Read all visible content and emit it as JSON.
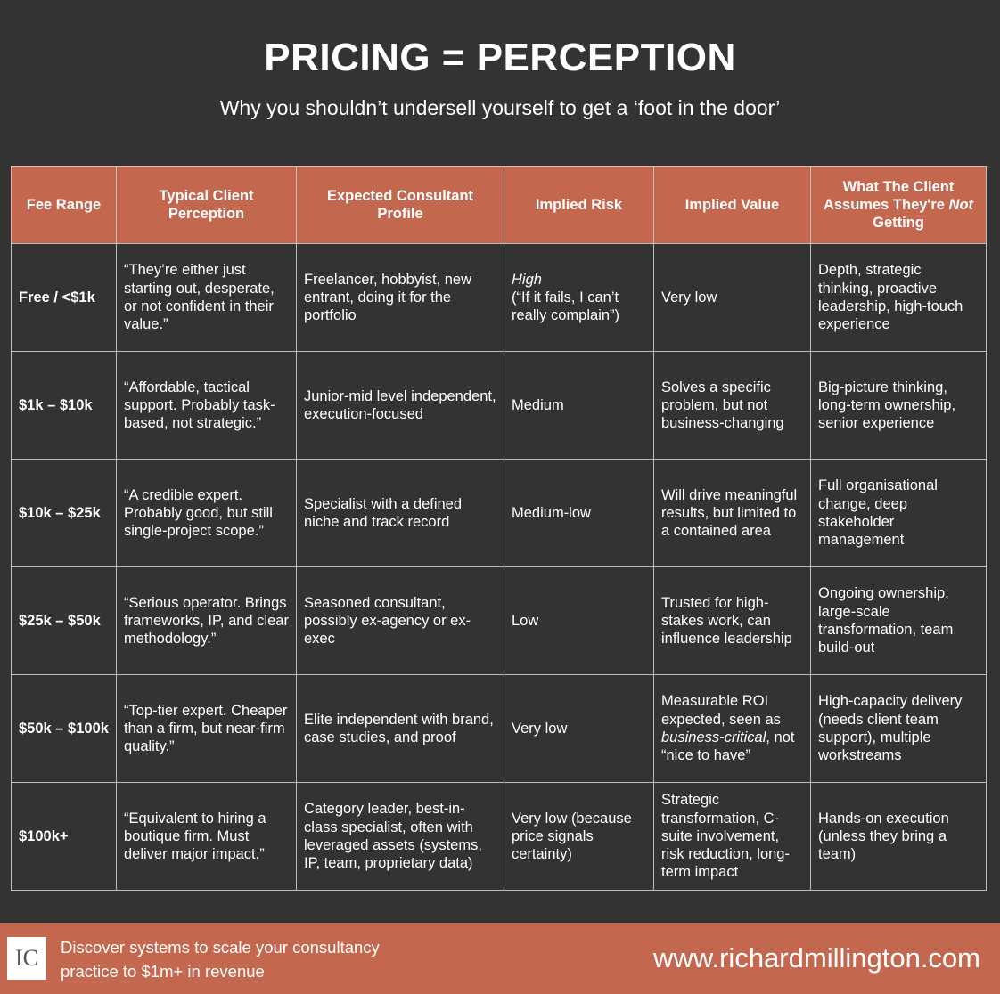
{
  "header": {
    "title": "PRICING = PERCEPTION",
    "subtitle": "Why you shouldn’t undersell yourself to get a ‘foot in the door’"
  },
  "table": {
    "columns": [
      "Fee Range",
      "Typical Client Perception",
      "Expected Consultant Profile",
      "Implied Risk",
      "Implied Value",
      [
        [
          "What The Client Assumes They're ",
          {
            "em": "Not"
          },
          " Getting"
        ]
      ]
    ],
    "rows": [
      [
        "Free / <$1k",
        "“They’re either just starting out, desperate, or not confident in their value.”",
        "Freelancer, hobbyist, new entrant, doing it for the portfolio",
        [
          {
            "em": "High"
          },
          "(“If it fails, I can’t really complain”)"
        ],
        "Very low",
        "Depth, strategic thinking, proactive leadership, high-touch experience"
      ],
      [
        "$1k – $10k",
        "“Affordable, tactical support. Probably task-based, not strategic.”",
        "Junior-mid level independent, execution-focused",
        "Medium",
        "Solves a specific problem, but not business-changing",
        "Big-picture thinking, long-term ownership, senior experience"
      ],
      [
        "$10k – $25k",
        "“A credible expert. Probably good, but still single-project scope.”",
        "Specialist with a defined niche and track record",
        "Medium-low",
        "Will drive meaningful results, but limited to a contained area",
        "Full organisational change, deep stakeholder management"
      ],
      [
        "$25k – $50k",
        "“Serious operator. Brings frameworks, IP, and clear methodology.”",
        "Seasoned consultant, possibly ex-agency or ex-exec",
        "Low",
        "Trusted for high-stakes work, can influence leadership",
        "Ongoing ownership, large-scale transformation, team build-out"
      ],
      [
        "$50k – $100k",
        "“Top-tier expert. Cheaper than a firm, but near-firm quality.”",
        "Elite independent with brand, case studies, and proof",
        "Very low",
        [
          [
            "Measurable ROI expected, seen as ",
            {
              "em": "business-critical"
            },
            ", not “nice to have”"
          ]
        ],
        "High-capacity delivery (needs client team support), multiple workstreams"
      ],
      [
        "$100k+",
        "“Equivalent to hiring a boutique firm. Must deliver major impact.”",
        "Category leader, best-in-class specialist, often with leveraged assets (systems, IP, team, proprietary data)",
        "Very low (because price signals certainty)",
        "Strategic transformation, C-suite involvement, risk reduction, long-term impact",
        "Hands-on execution (unless they bring a team)"
      ]
    ]
  },
  "footer": {
    "logo": "IC",
    "cta": "Discover systems to scale your consultancy practice to $1m+ in revenue",
    "url": "www.richardmillington.com"
  }
}
